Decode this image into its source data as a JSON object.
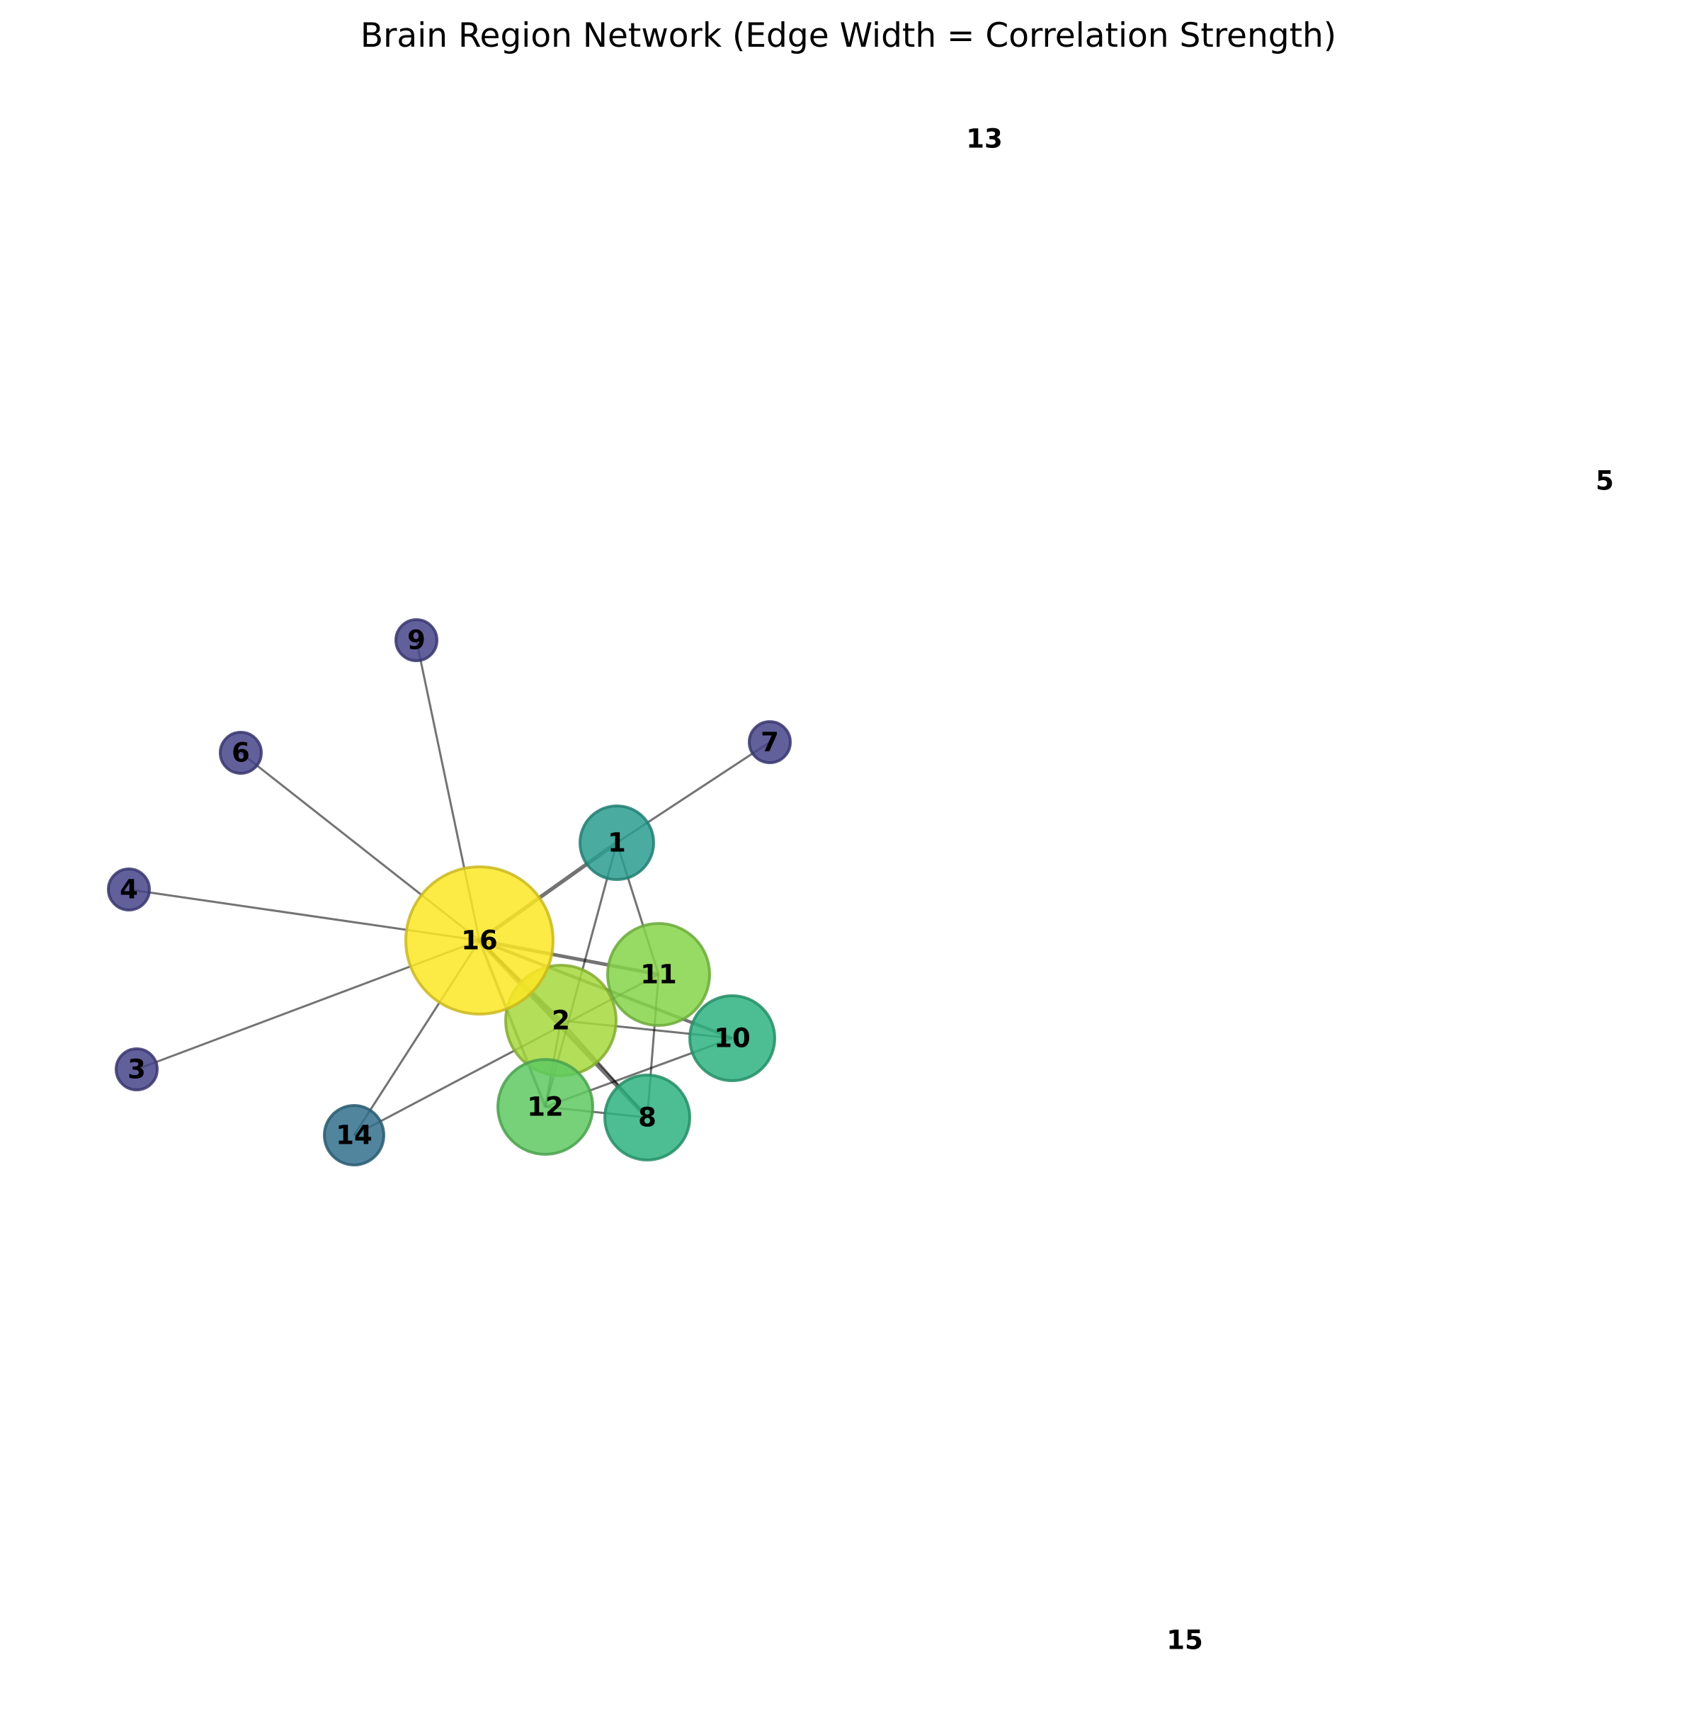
{
  "title": "Brain Region Network (Edge Width = Correlation Strength)",
  "nodes": [
    {
      "id": "1",
      "label": "1",
      "color": "#2a9d8f"
    },
    {
      "id": "2",
      "label": "2",
      "color": "#a5d83c"
    },
    {
      "id": "3",
      "label": "3",
      "color": "#46448a"
    },
    {
      "id": "4",
      "label": "4",
      "color": "#46448a"
    },
    {
      "id": "5",
      "label": "5",
      "color": null
    },
    {
      "id": "6",
      "label": "6",
      "color": "#46448a"
    },
    {
      "id": "7",
      "label": "7",
      "color": "#46448a"
    },
    {
      "id": "8",
      "label": "8",
      "color": "#2eb280"
    },
    {
      "id": "9",
      "label": "9",
      "color": "#46448a"
    },
    {
      "id": "10",
      "label": "10",
      "color": "#2eb280"
    },
    {
      "id": "11",
      "label": "11",
      "color": "#86d549"
    },
    {
      "id": "12",
      "label": "12",
      "color": "#5ec962"
    },
    {
      "id": "13",
      "label": "13",
      "color": null
    },
    {
      "id": "14",
      "label": "14",
      "color": "#33708c"
    },
    {
      "id": "15",
      "label": "15",
      "color": null
    },
    {
      "id": "16",
      "label": "16",
      "color": "#fde725"
    }
  ],
  "edges": [
    {
      "source": "16",
      "target": "9",
      "strength": 0.3
    },
    {
      "source": "16",
      "target": "6",
      "strength": 0.3
    },
    {
      "source": "16",
      "target": "4",
      "strength": 0.3
    },
    {
      "source": "16",
      "target": "3",
      "strength": 0.3
    },
    {
      "source": "16",
      "target": "14",
      "strength": 0.3
    },
    {
      "source": "16",
      "target": "1",
      "strength": 0.8
    },
    {
      "source": "16",
      "target": "11",
      "strength": 0.7
    },
    {
      "source": "16",
      "target": "10",
      "strength": 0.6
    },
    {
      "source": "16",
      "target": "2",
      "strength": 0.6
    },
    {
      "source": "16",
      "target": "12",
      "strength": 0.5
    },
    {
      "source": "16",
      "target": "8",
      "strength": 0.9
    },
    {
      "source": "1",
      "target": "7",
      "strength": 0.3
    },
    {
      "source": "1",
      "target": "11",
      "strength": 0.3
    },
    {
      "source": "1",
      "target": "12",
      "strength": 0.3
    },
    {
      "source": "2",
      "target": "10",
      "strength": 0.3
    },
    {
      "source": "2",
      "target": "12",
      "strength": 0.3
    },
    {
      "source": "2",
      "target": "8",
      "strength": 0.3
    },
    {
      "source": "11",
      "target": "14",
      "strength": 0.3
    },
    {
      "source": "11",
      "target": "8",
      "strength": 0.3
    },
    {
      "source": "12",
      "target": "10",
      "strength": 0.3
    },
    {
      "source": "12",
      "target": "8",
      "strength": 0.3
    }
  ]
}
